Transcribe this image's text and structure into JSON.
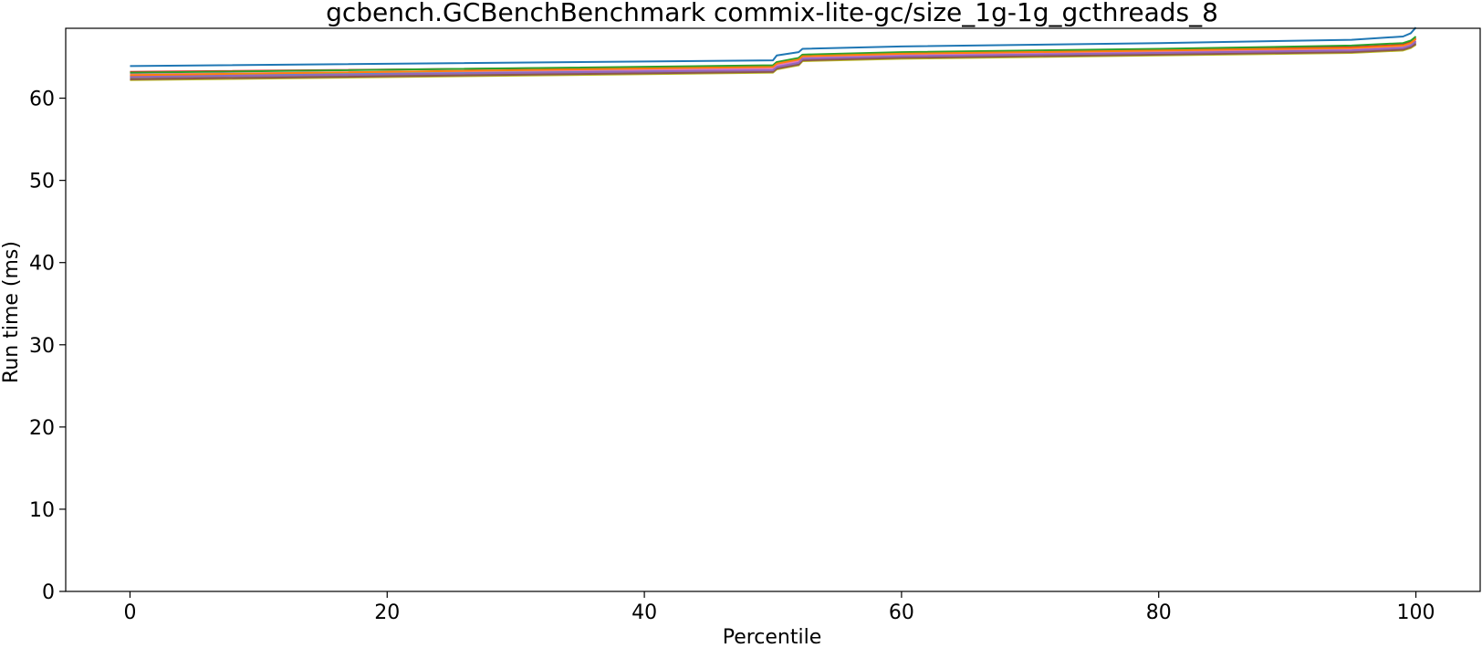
{
  "chart_data": {
    "type": "line",
    "title": "gcbench.GCBenchBenchmark commix-lite-gc/size_1g-1g_gcthreads_8",
    "xlabel": "Percentile",
    "ylabel": "Run time (ms)",
    "xlim": [
      -5,
      105
    ],
    "ylim": [
      0,
      68.5
    ],
    "xticks": [
      0,
      20,
      40,
      60,
      80,
      100
    ],
    "yticks": [
      0,
      10,
      20,
      30,
      40,
      50,
      60
    ],
    "grid": false,
    "legend": "none",
    "series": [
      {
        "color": "#1f77b4",
        "points": [
          [
            0,
            63.9
          ],
          [
            50,
            64.6
          ],
          [
            50.3,
            65.2
          ],
          [
            52,
            65.6
          ],
          [
            52.3,
            66.0
          ],
          [
            60,
            66.3
          ],
          [
            80,
            66.7
          ],
          [
            95,
            67.1
          ],
          [
            99,
            67.5
          ],
          [
            99.6,
            67.9
          ],
          [
            100,
            68.6
          ]
        ]
      },
      {
        "color": "#ff7f0e",
        "points": [
          [
            0,
            62.8
          ],
          [
            50,
            63.8
          ],
          [
            50.3,
            64.2
          ],
          [
            52,
            64.7
          ],
          [
            52.3,
            65.1
          ],
          [
            60,
            65.4
          ],
          [
            80,
            65.8
          ],
          [
            95,
            66.1
          ],
          [
            99,
            66.4
          ],
          [
            99.6,
            66.7
          ],
          [
            100,
            67.2
          ]
        ]
      },
      {
        "color": "#2ca02c",
        "points": [
          [
            0,
            63.1
          ],
          [
            50,
            64.0
          ],
          [
            50.3,
            64.4
          ],
          [
            52,
            64.9
          ],
          [
            52.3,
            65.3
          ],
          [
            60,
            65.6
          ],
          [
            80,
            66.0
          ],
          [
            95,
            66.4
          ],
          [
            99,
            66.7
          ],
          [
            99.6,
            67.0
          ],
          [
            100,
            67.5
          ]
        ]
      },
      {
        "color": "#d62728",
        "points": [
          [
            0,
            63.2
          ],
          [
            50,
            63.9
          ],
          [
            50.3,
            64.3
          ],
          [
            52,
            64.8
          ],
          [
            52.3,
            65.2
          ],
          [
            60,
            65.5
          ],
          [
            80,
            65.9
          ],
          [
            95,
            66.2
          ],
          [
            99,
            66.5
          ],
          [
            99.6,
            66.8
          ],
          [
            100,
            67.3
          ]
        ]
      },
      {
        "color": "#9467bd",
        "points": [
          [
            0,
            62.6
          ],
          [
            50,
            63.4
          ],
          [
            50.3,
            63.8
          ],
          [
            52,
            64.3
          ],
          [
            52.3,
            64.8
          ],
          [
            60,
            65.1
          ],
          [
            80,
            65.5
          ],
          [
            95,
            65.8
          ],
          [
            99,
            66.1
          ],
          [
            99.6,
            66.4
          ],
          [
            100,
            66.9
          ]
        ]
      },
      {
        "color": "#8c564b",
        "points": [
          [
            0,
            62.3
          ],
          [
            50,
            63.2
          ],
          [
            50.3,
            63.6
          ],
          [
            52,
            64.1
          ],
          [
            52.3,
            64.6
          ],
          [
            60,
            64.9
          ],
          [
            80,
            65.3
          ],
          [
            95,
            65.6
          ],
          [
            99,
            65.9
          ],
          [
            99.6,
            66.2
          ],
          [
            100,
            66.6
          ]
        ]
      },
      {
        "color": "#e377c2",
        "points": [
          [
            0,
            62.9
          ],
          [
            50,
            63.6
          ],
          [
            50.3,
            64.0
          ],
          [
            52,
            64.5
          ],
          [
            52.3,
            65.0
          ],
          [
            60,
            65.3
          ],
          [
            80,
            65.7
          ],
          [
            95,
            66.0
          ],
          [
            99,
            66.3
          ],
          [
            99.6,
            66.6
          ],
          [
            100,
            67.0
          ]
        ]
      },
      {
        "color": "#7f7f7f",
        "points": [
          [
            0,
            62.5
          ],
          [
            50,
            63.3
          ],
          [
            50.3,
            63.7
          ],
          [
            52,
            64.2
          ],
          [
            52.3,
            64.7
          ],
          [
            60,
            65.0
          ],
          [
            80,
            65.4
          ],
          [
            95,
            65.7
          ],
          [
            99,
            66.0
          ],
          [
            99.6,
            66.3
          ],
          [
            100,
            66.7
          ]
        ]
      },
      {
        "color": "#bcbd22",
        "points": [
          [
            0,
            62.2
          ],
          [
            50,
            63.1
          ],
          [
            50.3,
            63.5
          ],
          [
            52,
            64.0
          ],
          [
            52.3,
            64.5
          ],
          [
            60,
            64.8
          ],
          [
            80,
            65.2
          ],
          [
            95,
            65.5
          ],
          [
            99,
            65.8
          ],
          [
            99.6,
            66.1
          ],
          [
            100,
            66.5
          ]
        ]
      },
      {
        "color": "#17becf",
        "points": [
          [
            0,
            62.7
          ],
          [
            50,
            63.5
          ],
          [
            50.3,
            63.9
          ],
          [
            52,
            64.4
          ],
          [
            52.3,
            64.9
          ],
          [
            60,
            65.2
          ],
          [
            80,
            65.6
          ],
          [
            95,
            65.9
          ],
          [
            99,
            66.2
          ],
          [
            99.6,
            66.5
          ],
          [
            100,
            66.9
          ]
        ]
      }
    ]
  }
}
